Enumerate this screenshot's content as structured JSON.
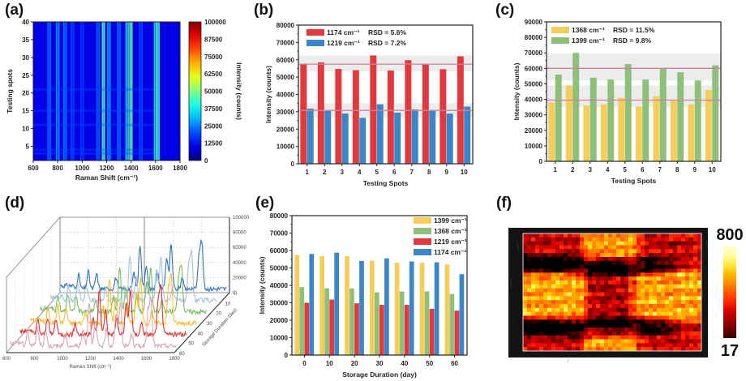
{
  "panels": {
    "a": {
      "label": "(a)"
    },
    "b": {
      "label": "(b)"
    },
    "c": {
      "label": "(c)"
    },
    "d": {
      "label": "(d)"
    },
    "e": {
      "label": "(e)"
    },
    "f": {
      "label": "(f)"
    }
  },
  "chart_data": [
    {
      "id": "a",
      "type": "heatmap",
      "title": "",
      "xlabel": "Raman Shift (cm⁻¹)",
      "ylabel": "Testing spots",
      "xlim": [
        600,
        1800
      ],
      "ylim": [
        1,
        40
      ],
      "xticks": [
        "600",
        "800",
        "1000",
        "1200",
        "1400",
        "1600",
        "1800"
      ],
      "yticks": [
        "5",
        "10",
        "15",
        "20",
        "25",
        "30",
        "35",
        "40"
      ],
      "colorbar": {
        "label": "Intensity (counts)",
        "range": [
          0,
          100000
        ],
        "ticks": [
          "0",
          "12500",
          "25000",
          "37500",
          "50000",
          "62500",
          "75000",
          "87500",
          "100000"
        ],
        "colormap": "jet"
      },
      "peaks": [
        {
          "shift": 730,
          "intensity": 20000
        },
        {
          "shift": 800,
          "intensity": 25000
        },
        {
          "shift": 860,
          "intensity": 22000
        },
        {
          "shift": 920,
          "intensity": 15000
        },
        {
          "shift": 1000,
          "intensity": 12000
        },
        {
          "shift": 1130,
          "intensity": 18000
        },
        {
          "shift": 1174,
          "intensity": 55000
        },
        {
          "shift": 1219,
          "intensity": 28000
        },
        {
          "shift": 1300,
          "intensity": 20000
        },
        {
          "shift": 1368,
          "intensity": 40000
        },
        {
          "shift": 1399,
          "intensity": 58000
        },
        {
          "shift": 1480,
          "intensity": 15000
        },
        {
          "shift": 1600,
          "intensity": 40000
        },
        {
          "shift": 1620,
          "intensity": 52000
        }
      ]
    },
    {
      "id": "b",
      "type": "bar",
      "xlabel": "Testing Spots",
      "ylabel": "Intensity (counts)",
      "ylim": [
        0,
        80000
      ],
      "yticks": [
        "0",
        "10000",
        "20000",
        "30000",
        "40000",
        "50000",
        "60000",
        "70000",
        "80000"
      ],
      "categories": [
        "1",
        "2",
        "3",
        "4",
        "5",
        "6",
        "7",
        "8",
        "9",
        "10"
      ],
      "series": [
        {
          "name": "1174 cm⁻¹",
          "rsd": "RSD = 5.6%",
          "color": "#e03a3e",
          "values": [
            57500,
            58500,
            54700,
            54000,
            62500,
            53800,
            59800,
            57300,
            54600,
            62000
          ],
          "mean": 57500,
          "band": [
            53300,
            62500
          ]
        },
        {
          "name": "1219 cm⁻¹",
          "rsd": "RSD = 7.2%",
          "color": "#3a86c8",
          "values": [
            31800,
            30500,
            29000,
            26500,
            34300,
            29500,
            31400,
            30500,
            29000,
            33000
          ],
          "mean": 30800,
          "band": [
            26600,
            35000
          ]
        }
      ],
      "mean_line_color": "#c9849a",
      "band_color": "#e6e6e6"
    },
    {
      "id": "c",
      "type": "bar",
      "xlabel": "Testing Spots",
      "ylabel": "Intensity (counts)",
      "ylim": [
        0,
        90000
      ],
      "yticks": [
        "0",
        "10000",
        "20000",
        "30000",
        "40000",
        "50000",
        "60000",
        "70000",
        "80000",
        "90000"
      ],
      "categories": [
        "1",
        "2",
        "3",
        "4",
        "5",
        "6",
        "7",
        "8",
        "9",
        "10"
      ],
      "series": [
        {
          "name": "1368 cm⁻¹",
          "rsd": "RSD = 11.5%",
          "color": "#f5cd5b",
          "values": [
            38000,
            49000,
            36000,
            36700,
            41000,
            35300,
            42000,
            39000,
            36700,
            46000
          ],
          "mean": 39500,
          "band": [
            35000,
            49000
          ]
        },
        {
          "name": "1399 cm⁻¹",
          "rsd": "RSD = 9.8%",
          "color": "#8fc07a",
          "values": [
            56000,
            70000,
            54000,
            52800,
            62800,
            52800,
            60000,
            57500,
            52200,
            62000
          ],
          "mean": 60000,
          "band": [
            52200,
            69500
          ]
        }
      ],
      "mean_line_color": "#c9849a",
      "band_color": "#e6e6e6"
    },
    {
      "id": "d",
      "type": "line",
      "title": "",
      "xlabel": "Raman Shift (cm⁻¹)",
      "ylabel": "Intensity (counts)",
      "zlabel": "Storage Duration (day)",
      "xlim": [
        600,
        1800
      ],
      "xticks": [
        "600",
        "800",
        "1000",
        "1200",
        "1400",
        "1600",
        "1800"
      ],
      "zticks": [
        "0",
        "10",
        "20",
        "30",
        "40",
        "50",
        "60"
      ],
      "yticks": [
        "0",
        "20000",
        "40000",
        "60000",
        "80000",
        "100000"
      ],
      "ylim": [
        0,
        100000
      ],
      "series": [
        {
          "name": "0",
          "color": "#2f72b8"
        },
        {
          "name": "10",
          "color": "#a8c4dc"
        },
        {
          "name": "20",
          "color": "#7dbb63"
        },
        {
          "name": "30",
          "color": "#f2c131"
        },
        {
          "name": "40",
          "color": "#e13234"
        },
        {
          "name": "50",
          "color": "#d9a6b4"
        }
      ],
      "peaks": [
        {
          "shift": 730,
          "intensity": 18000
        },
        {
          "shift": 800,
          "intensity": 22000
        },
        {
          "shift": 860,
          "intensity": 19000
        },
        {
          "shift": 1000,
          "intensity": 14000
        },
        {
          "shift": 1130,
          "intensity": 20000
        },
        {
          "shift": 1174,
          "intensity": 57000
        },
        {
          "shift": 1219,
          "intensity": 31000
        },
        {
          "shift": 1300,
          "intensity": 22000
        },
        {
          "shift": 1368,
          "intensity": 39000
        },
        {
          "shift": 1399,
          "intensity": 57000
        },
        {
          "shift": 1480,
          "intensity": 15000
        },
        {
          "shift": 1600,
          "intensity": 42000
        },
        {
          "shift": 1620,
          "intensity": 58000
        }
      ]
    },
    {
      "id": "e",
      "type": "bar",
      "xlabel": "Storage Duration (day)",
      "ylabel": "Intensity (counts)",
      "ylim": [
        0,
        80000
      ],
      "yticks": [
        "0",
        "10000",
        "20000",
        "30000",
        "40000",
        "50000",
        "60000",
        "70000",
        "80000"
      ],
      "categories": [
        "0",
        "10",
        "20",
        "30",
        "40",
        "50",
        "60"
      ],
      "series": [
        {
          "name": "1399 cm⁻¹",
          "color": "#f5cd5b",
          "values": [
            57500,
            56800,
            56700,
            54200,
            53000,
            53000,
            52000
          ]
        },
        {
          "name": "1368 cm⁻¹",
          "color": "#8fc07a",
          "values": [
            39000,
            38300,
            38300,
            36000,
            36500,
            36500,
            35000
          ]
        },
        {
          "name": "1219 cm⁻¹",
          "color": "#e03a3e",
          "values": [
            30000,
            31800,
            29700,
            28800,
            28800,
            26500,
            25500
          ]
        },
        {
          "name": "1174 cm⁻¹",
          "color": "#3a86c8",
          "values": [
            58000,
            58800,
            54000,
            55500,
            53700,
            53200,
            46400
          ]
        }
      ],
      "legend": "top-right"
    },
    {
      "id": "f",
      "type": "heatmap",
      "title": "",
      "colorbar": {
        "max_label": "800",
        "min_label": "17",
        "range": [
          17,
          800
        ],
        "colormap": "hot"
      }
    }
  ]
}
